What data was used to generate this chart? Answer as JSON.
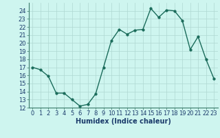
{
  "x": [
    0,
    1,
    2,
    3,
    4,
    5,
    6,
    7,
    8,
    9,
    10,
    11,
    12,
    13,
    14,
    15,
    16,
    17,
    18,
    19,
    20,
    21,
    22,
    23
  ],
  "y": [
    17.0,
    16.7,
    15.9,
    13.8,
    13.8,
    13.0,
    12.2,
    12.4,
    13.7,
    17.0,
    20.3,
    21.7,
    21.1,
    21.6,
    21.7,
    24.3,
    23.2,
    24.1,
    24.0,
    22.8,
    19.2,
    20.8,
    18.0,
    15.6
  ],
  "line_color": "#1a6b5a",
  "marker_color": "#1a6b5a",
  "bg_color": "#cef5ef",
  "grid_color": "#afd8d2",
  "xlabel": "Humidex (Indice chaleur)",
  "ylim": [
    12,
    25
  ],
  "xlim": [
    -0.5,
    23.5
  ],
  "yticks": [
    12,
    13,
    14,
    15,
    16,
    17,
    18,
    19,
    20,
    21,
    22,
    23,
    24
  ],
  "xticks": [
    0,
    1,
    2,
    3,
    4,
    5,
    6,
    7,
    8,
    9,
    10,
    11,
    12,
    13,
    14,
    15,
    16,
    17,
    18,
    19,
    20,
    21,
    22,
    23
  ],
  "xtick_labels": [
    "0",
    "1",
    "2",
    "3",
    "4",
    "5",
    "6",
    "7",
    "8",
    "9",
    "10",
    "11",
    "12",
    "13",
    "14",
    "15",
    "16",
    "17",
    "18",
    "19",
    "20",
    "21",
    "22",
    "23"
  ],
  "xlabel_fontsize": 7,
  "tick_fontsize": 6,
  "linewidth": 1.0,
  "markersize": 2.5,
  "spine_color": "#3a7a6a",
  "label_color": "#1a3a6a"
}
